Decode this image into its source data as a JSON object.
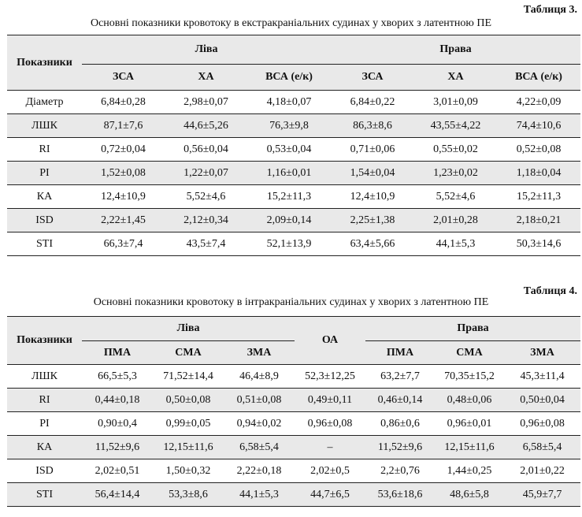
{
  "table3": {
    "number": "Таблиця 3.",
    "caption": "Основні показники кровотоку в екстракраніальних судинах у хворих з латентною ПЕ",
    "row_header": "Показники",
    "left_group": "Ліва",
    "right_group": "Права",
    "columns": [
      "ЗСА",
      "ХА",
      "ВСА (е/к)",
      "ЗСА",
      "ХА",
      "ВСА (е/к)"
    ],
    "rows": [
      {
        "label": "Діаметр",
        "values": [
          "6,84±0,28",
          "2,98±0,07",
          "4,18±0,07",
          "6,84±0,22",
          "3,01±0,09",
          "4,22±0,09"
        ]
      },
      {
        "label": "ЛШК",
        "values": [
          "87,1±7,6",
          "44,6±5,26",
          "76,3±9,8",
          "86,3±8,6",
          "43,55±4,22",
          "74,4±10,6"
        ]
      },
      {
        "label": "RI",
        "values": [
          "0,72±0,04",
          "0,56±0,04",
          "0,53±0,04",
          "0,71±0,06",
          "0,55±0,02",
          "0,52±0,08"
        ]
      },
      {
        "label": "PI",
        "values": [
          "1,52±0,08",
          "1,22±0,07",
          "1,16±0,01",
          "1,54±0,04",
          "1,23±0,02",
          "1,18±0,04"
        ]
      },
      {
        "label": "КА",
        "values": [
          "12,4±10,9",
          "5,52±4,6",
          "15,2±11,3",
          "12,4±10,9",
          "5,52±4,6",
          "15,2±11,3"
        ]
      },
      {
        "label": "ISD",
        "values": [
          "2,22±1,45",
          "2,12±0,34",
          "2,09±0,14",
          "2,25±1,38",
          "2,01±0,28",
          "2,18±0,21"
        ]
      },
      {
        "label": "STI",
        "values": [
          "66,3±7,4",
          "43,5±7,4",
          "52,1±13,9",
          "63,4±5,66",
          "44,1±5,3",
          "50,3±14,6"
        ]
      }
    ]
  },
  "table4": {
    "number": "Таблиця 4.",
    "caption": "Основні показники кровотоку в інтракраніальних судинах у хворих з латентною ПЕ",
    "row_header": "Показники",
    "left_group": "Ліва",
    "middle_column": "ОА",
    "right_group": "Права",
    "left_columns": [
      "ПМА",
      "СМА",
      "ЗМА"
    ],
    "right_columns": [
      "ПМА",
      "СМА",
      "ЗМА"
    ],
    "rows": [
      {
        "label": "ЛШК",
        "values": [
          "66,5±5,3",
          "71,52±14,4",
          "46,4±8,9",
          "52,3±12,25",
          "63,2±7,7",
          "70,35±15,2",
          "45,3±11,4"
        ]
      },
      {
        "label": "RI",
        "values": [
          "0,44±0,18",
          "0,50±0,08",
          "0,51±0,08",
          "0,49±0,11",
          "0,46±0,14",
          "0,48±0,06",
          "0,50±0,04"
        ]
      },
      {
        "label": "PI",
        "values": [
          "0,90±0,4",
          "0,99±0,05",
          "0,94±0,02",
          "0,96±0,08",
          "0,86±0,6",
          "0,96±0,01",
          "0,96±0,08"
        ]
      },
      {
        "label": "КА",
        "values": [
          "11,52±9,6",
          "12,15±11,6",
          "6,58±5,4",
          "–",
          "11,52±9,6",
          "12,15±11,6",
          "6,58±5,4"
        ]
      },
      {
        "label": "ISD",
        "values": [
          "2,02±0,51",
          "1,50±0,32",
          "2,22±0,18",
          "2,02±0,5",
          "2,2±0,76",
          "1,44±0,25",
          "2,01±0,22"
        ]
      },
      {
        "label": "STI",
        "values": [
          "56,4±14,4",
          "53,3±8,6",
          "44,1±5,3",
          "44,7±6,5",
          "53,6±18,6",
          "48,6±5,8",
          "45,9±7,7"
        ]
      }
    ]
  }
}
